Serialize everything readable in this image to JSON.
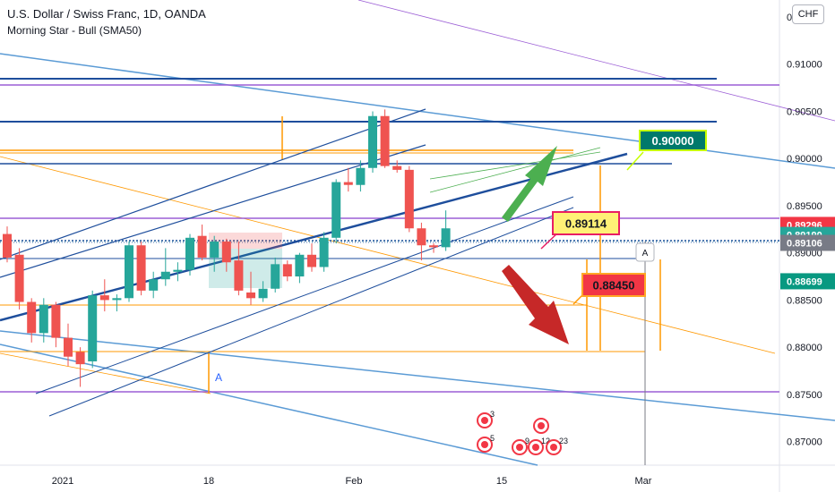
{
  "header": {
    "title": "U.S. Dollar / Swiss Franc, 1D, OANDA",
    "indicator": "Morning Star - Bull (SMA50)"
  },
  "currency_button": "CHF",
  "chart_data": {
    "type": "candlestick",
    "symbol": "USDCHF",
    "interval": "1D",
    "ylim": [
      0.8675,
      0.9168
    ],
    "y_ticks": [
      "0.91500",
      "0.91000",
      "0.90500",
      "0.90000",
      "0.89500",
      "0.89000",
      "0.88500",
      "0.88000",
      "0.87500",
      "0.87000"
    ],
    "x_ticks": [
      "2021",
      "18",
      "Feb",
      "15",
      "Mar"
    ],
    "candles": [
      {
        "o": 0.892,
        "h": 0.8928,
        "l": 0.889,
        "c": 0.8895
      },
      {
        "o": 0.8898,
        "h": 0.8905,
        "l": 0.884,
        "c": 0.8848
      },
      {
        "o": 0.8848,
        "h": 0.8852,
        "l": 0.8805,
        "c": 0.8815
      },
      {
        "o": 0.8815,
        "h": 0.8852,
        "l": 0.8805,
        "c": 0.8845
      },
      {
        "o": 0.8845,
        "h": 0.8848,
        "l": 0.88,
        "c": 0.881
      },
      {
        "o": 0.881,
        "h": 0.8825,
        "l": 0.878,
        "c": 0.879
      },
      {
        "o": 0.8795,
        "h": 0.88,
        "l": 0.8758,
        "c": 0.8782
      },
      {
        "o": 0.8785,
        "h": 0.886,
        "l": 0.8778,
        "c": 0.8855
      },
      {
        "o": 0.8855,
        "h": 0.8872,
        "l": 0.8838,
        "c": 0.885
      },
      {
        "o": 0.885,
        "h": 0.8856,
        "l": 0.8838,
        "c": 0.8852
      },
      {
        "o": 0.8852,
        "h": 0.8912,
        "l": 0.8848,
        "c": 0.8908
      },
      {
        "o": 0.8908,
        "h": 0.8912,
        "l": 0.8855,
        "c": 0.886
      },
      {
        "o": 0.886,
        "h": 0.888,
        "l": 0.8852,
        "c": 0.8872
      },
      {
        "o": 0.8872,
        "h": 0.8905,
        "l": 0.8865,
        "c": 0.888
      },
      {
        "o": 0.888,
        "h": 0.889,
        "l": 0.887,
        "c": 0.8882
      },
      {
        "o": 0.8882,
        "h": 0.892,
        "l": 0.8876,
        "c": 0.8916
      },
      {
        "o": 0.8918,
        "h": 0.893,
        "l": 0.8892,
        "c": 0.8895
      },
      {
        "o": 0.8895,
        "h": 0.8918,
        "l": 0.888,
        "c": 0.8912
      },
      {
        "o": 0.8912,
        "h": 0.8915,
        "l": 0.888,
        "c": 0.889
      },
      {
        "o": 0.8892,
        "h": 0.8912,
        "l": 0.8855,
        "c": 0.886
      },
      {
        "o": 0.8858,
        "h": 0.888,
        "l": 0.8845,
        "c": 0.8852
      },
      {
        "o": 0.8852,
        "h": 0.887,
        "l": 0.8848,
        "c": 0.8862
      },
      {
        "o": 0.8862,
        "h": 0.8895,
        "l": 0.8858,
        "c": 0.8888
      },
      {
        "o": 0.8888,
        "h": 0.8892,
        "l": 0.887,
        "c": 0.8875
      },
      {
        "o": 0.8875,
        "h": 0.89,
        "l": 0.8868,
        "c": 0.8898
      },
      {
        "o": 0.8898,
        "h": 0.891,
        "l": 0.888,
        "c": 0.8885
      },
      {
        "o": 0.8885,
        "h": 0.8922,
        "l": 0.888,
        "c": 0.8916
      },
      {
        "o": 0.8916,
        "h": 0.8978,
        "l": 0.891,
        "c": 0.8975
      },
      {
        "o": 0.8975,
        "h": 0.899,
        "l": 0.8965,
        "c": 0.8972
      },
      {
        "o": 0.8972,
        "h": 0.8998,
        "l": 0.8965,
        "c": 0.899
      },
      {
        "o": 0.899,
        "h": 0.905,
        "l": 0.8985,
        "c": 0.9045
      },
      {
        "o": 0.9045,
        "h": 0.9052,
        "l": 0.899,
        "c": 0.8992
      },
      {
        "o": 0.8992,
        "h": 0.8998,
        "l": 0.8985,
        "c": 0.8988
      },
      {
        "o": 0.8988,
        "h": 0.8992,
        "l": 0.8922,
        "c": 0.8926
      },
      {
        "o": 0.8926,
        "h": 0.8932,
        "l": 0.8892,
        "c": 0.8908
      },
      {
        "o": 0.8908,
        "h": 0.891,
        "l": 0.89,
        "c": 0.8906
      },
      {
        "o": 0.8906,
        "h": 0.8945,
        "l": 0.8902,
        "c": 0.8926
      }
    ]
  },
  "price_labels": [
    {
      "text": "0.89296",
      "value": 0.89296,
      "color": "#f23645"
    },
    {
      "text": "0.89190",
      "value": 0.8919,
      "color": "#26a69a"
    },
    {
      "text": "0.89106",
      "value": 0.89106,
      "color": "#787b86"
    },
    {
      "text": "0.88699",
      "value": 0.88699,
      "color": "#089981"
    }
  ],
  "annotations": [
    {
      "text": "0.90000",
      "bg": "#00796b",
      "border": "#c6ff00",
      "color": "#ffffff"
    },
    {
      "text": "0.89114",
      "bg": "#fff176",
      "border": "#e91e63",
      "color": "#131722"
    },
    {
      "text": "0.88450",
      "bg": "#f23645",
      "border": "#ffa726",
      "color": "#131722"
    }
  ],
  "markers": {
    "alert_letter": "A",
    "event_counts": [
      "3",
      "5",
      "9",
      "12",
      "23"
    ]
  },
  "colors": {
    "bull": "#26a69a",
    "bear": "#ef5350",
    "trend_blue": "#1e4e9c",
    "light_blue": "#5b9bd5",
    "purple": "#9c5fd6",
    "orange": "#ff9800",
    "green_arrow": "#4caf50",
    "red_arrow": "#c62828"
  }
}
